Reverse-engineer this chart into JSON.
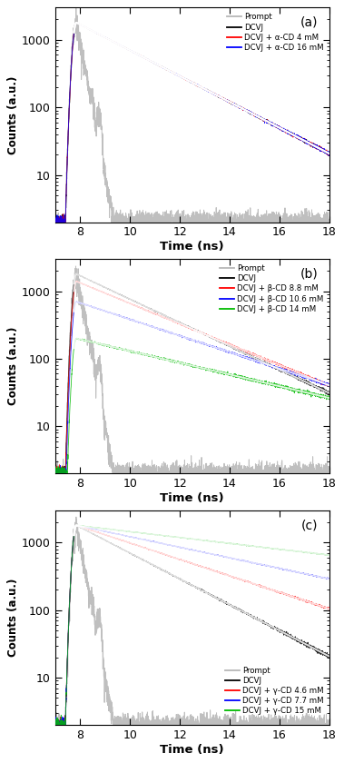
{
  "xlim": [
    7,
    18
  ],
  "ylim_low": 2,
  "ylim_high": 3000,
  "xlabel": "Time (ns)",
  "ylabel": "Counts (a.u.)",
  "xticks": [
    8,
    10,
    12,
    14,
    16,
    18
  ],
  "peak_time": 7.85,
  "panels": [
    {
      "label": "(a)",
      "legend": [
        "Prompt",
        "DCVJ",
        "DCVJ + α-CD 4 mM",
        "DCVJ + α-CD 16 mM"
      ],
      "colors": [
        "#b8b8b8",
        "#000000",
        "#ff0000",
        "#0000ff"
      ],
      "decay_rates": [
        0.0,
        0.44,
        0.44,
        0.44
      ],
      "amplitudes": [
        1800,
        1800,
        1800,
        1800
      ],
      "legend_loc": "upper right"
    },
    {
      "label": "(b)",
      "legend": [
        "Prompt",
        "DCVJ",
        "DCVJ + β-CD 8.8 mM",
        "DCVJ + β-CD 10.6 mM",
        "DCVJ + β-CD 14 mM"
      ],
      "colors": [
        "#b8b8b8",
        "#000000",
        "#ff0000",
        "#0000ff",
        "#00bb00"
      ],
      "decay_rates": [
        0.0,
        0.4,
        0.35,
        0.28,
        0.2
      ],
      "amplitudes": [
        1800,
        1800,
        1400,
        700,
        200
      ],
      "legend_loc": "upper right"
    },
    {
      "label": "(c)",
      "legend": [
        "Prompt",
        "DCVJ",
        "DCVJ + γ-CD 4.6 mM",
        "DCVJ + γ-CD 7.7 mM",
        "DCVJ + γ-CD 15 mM"
      ],
      "colors": [
        "#b8b8b8",
        "#000000",
        "#ff0000",
        "#0000ff",
        "#00bb00"
      ],
      "decay_rates": [
        0.0,
        0.44,
        0.28,
        0.18,
        0.1
      ],
      "amplitudes": [
        1800,
        1800,
        1800,
        1800,
        1800
      ],
      "legend_loc": "lower left"
    }
  ]
}
